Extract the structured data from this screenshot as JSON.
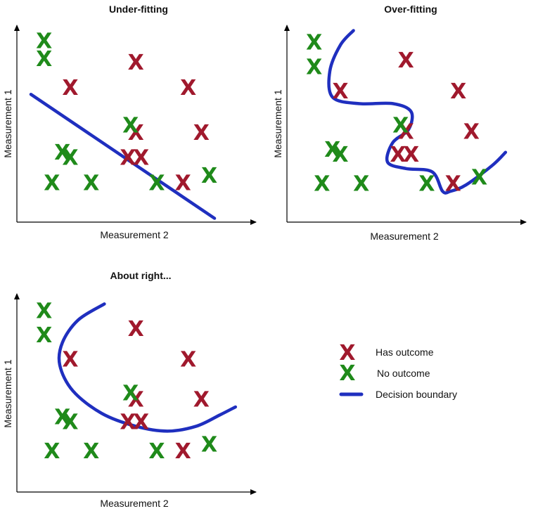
{
  "colors": {
    "has_outcome": "#a0192d",
    "no_outcome": "#1f8a1a",
    "decision_boundary": "#1f2fbf"
  },
  "marker_glyph": "X",
  "legend": {
    "has_outcome_label": "Has outcome",
    "no_outcome_label": "No outcome",
    "boundary_label": "Decision boundary"
  },
  "chart_data": [
    {
      "type": "scatter",
      "title": "Under-fitting",
      "xlabel": "Measurement 2",
      "ylabel": "Measurement 1",
      "series": [
        {
          "name": "Has outcome",
          "points": [
            {
              "x": 4.0,
              "y": 7.7
            },
            {
              "x": 1.5,
              "y": 6.3
            },
            {
              "x": 6.0,
              "y": 6.3
            },
            {
              "x": 4.0,
              "y": 3.8
            },
            {
              "x": 6.5,
              "y": 3.8
            },
            {
              "x": 3.7,
              "y": 2.4
            },
            {
              "x": 4.2,
              "y": 2.4
            },
            {
              "x": 5.8,
              "y": 1.0
            }
          ]
        },
        {
          "name": "No outcome",
          "points": [
            {
              "x": 0.5,
              "y": 8.9
            },
            {
              "x": 0.5,
              "y": 7.9
            },
            {
              "x": 3.8,
              "y": 4.2
            },
            {
              "x": 1.2,
              "y": 2.7
            },
            {
              "x": 1.5,
              "y": 2.4
            },
            {
              "x": 0.8,
              "y": 1.0
            },
            {
              "x": 2.3,
              "y": 1.0
            },
            {
              "x": 4.8,
              "y": 1.0
            },
            {
              "x": 6.8,
              "y": 1.4
            }
          ]
        }
      ],
      "boundary": [
        [
          0.0,
          5.9
        ],
        [
          7.0,
          -1.0
        ]
      ]
    },
    {
      "type": "scatter",
      "title": "Over-fitting",
      "xlabel": "Measurement 2",
      "ylabel": "Measurement 1",
      "series": [
        {
          "name": "Has outcome",
          "points": [
            {
              "x": 4.0,
              "y": 8.7
            },
            {
              "x": 1.5,
              "y": 6.8
            },
            {
              "x": 6.0,
              "y": 6.8
            },
            {
              "x": 4.0,
              "y": 4.3
            },
            {
              "x": 6.5,
              "y": 4.3
            },
            {
              "x": 3.7,
              "y": 2.9
            },
            {
              "x": 4.2,
              "y": 2.9
            },
            {
              "x": 5.8,
              "y": 1.1
            }
          ]
        },
        {
          "name": "No outcome",
          "points": [
            {
              "x": 0.5,
              "y": 9.8
            },
            {
              "x": 0.5,
              "y": 8.3
            },
            {
              "x": 3.8,
              "y": 4.7
            },
            {
              "x": 1.2,
              "y": 3.2
            },
            {
              "x": 1.5,
              "y": 2.9
            },
            {
              "x": 0.8,
              "y": 1.1
            },
            {
              "x": 2.3,
              "y": 1.1
            },
            {
              "x": 4.8,
              "y": 1.1
            },
            {
              "x": 6.8,
              "y": 1.5
            }
          ]
        }
      ],
      "boundary": [
        [
          2.0,
          10.5
        ],
        [
          1.5,
          9.6
        ],
        [
          1.1,
          8.0
        ],
        [
          1.2,
          6.4
        ],
        [
          2.2,
          6.0
        ],
        [
          3.5,
          6.0
        ],
        [
          4.2,
          5.5
        ],
        [
          4.1,
          4.4
        ],
        [
          3.5,
          3.6
        ],
        [
          3.3,
          2.4
        ],
        [
          4.0,
          2.0
        ],
        [
          5.0,
          1.8
        ],
        [
          5.4,
          0.6
        ],
        [
          5.7,
          0.6
        ],
        [
          6.3,
          1.0
        ],
        [
          7.3,
          2.2
        ],
        [
          7.8,
          3.0
        ]
      ]
    },
    {
      "type": "scatter",
      "title": "About right...",
      "xlabel": "Measurement 2",
      "ylabel": "Measurement 1",
      "series": [
        {
          "name": "Has outcome",
          "points": [
            {
              "x": 4.0,
              "y": 8.7
            },
            {
              "x": 1.5,
              "y": 6.8
            },
            {
              "x": 6.0,
              "y": 6.8
            },
            {
              "x": 4.0,
              "y": 4.3
            },
            {
              "x": 6.5,
              "y": 4.3
            },
            {
              "x": 3.7,
              "y": 2.9
            },
            {
              "x": 4.2,
              "y": 2.9
            },
            {
              "x": 5.8,
              "y": 1.1
            }
          ]
        },
        {
          "name": "No outcome",
          "points": [
            {
              "x": 0.5,
              "y": 9.8
            },
            {
              "x": 0.5,
              "y": 8.3
            },
            {
              "x": 3.8,
              "y": 4.7
            },
            {
              "x": 1.2,
              "y": 3.2
            },
            {
              "x": 1.5,
              "y": 2.9
            },
            {
              "x": 0.8,
              "y": 1.1
            },
            {
              "x": 2.3,
              "y": 1.1
            },
            {
              "x": 4.8,
              "y": 1.1
            },
            {
              "x": 6.8,
              "y": 1.5
            }
          ]
        }
      ],
      "boundary": [
        [
          2.8,
          10.2
        ],
        [
          1.8,
          9.2
        ],
        [
          1.2,
          7.8
        ],
        [
          1.1,
          6.4
        ],
        [
          1.6,
          4.8
        ],
        [
          2.7,
          3.4
        ],
        [
          4.0,
          2.6
        ],
        [
          5.2,
          2.3
        ],
        [
          6.3,
          2.6
        ],
        [
          7.2,
          3.3
        ],
        [
          7.8,
          3.8
        ]
      ]
    }
  ]
}
